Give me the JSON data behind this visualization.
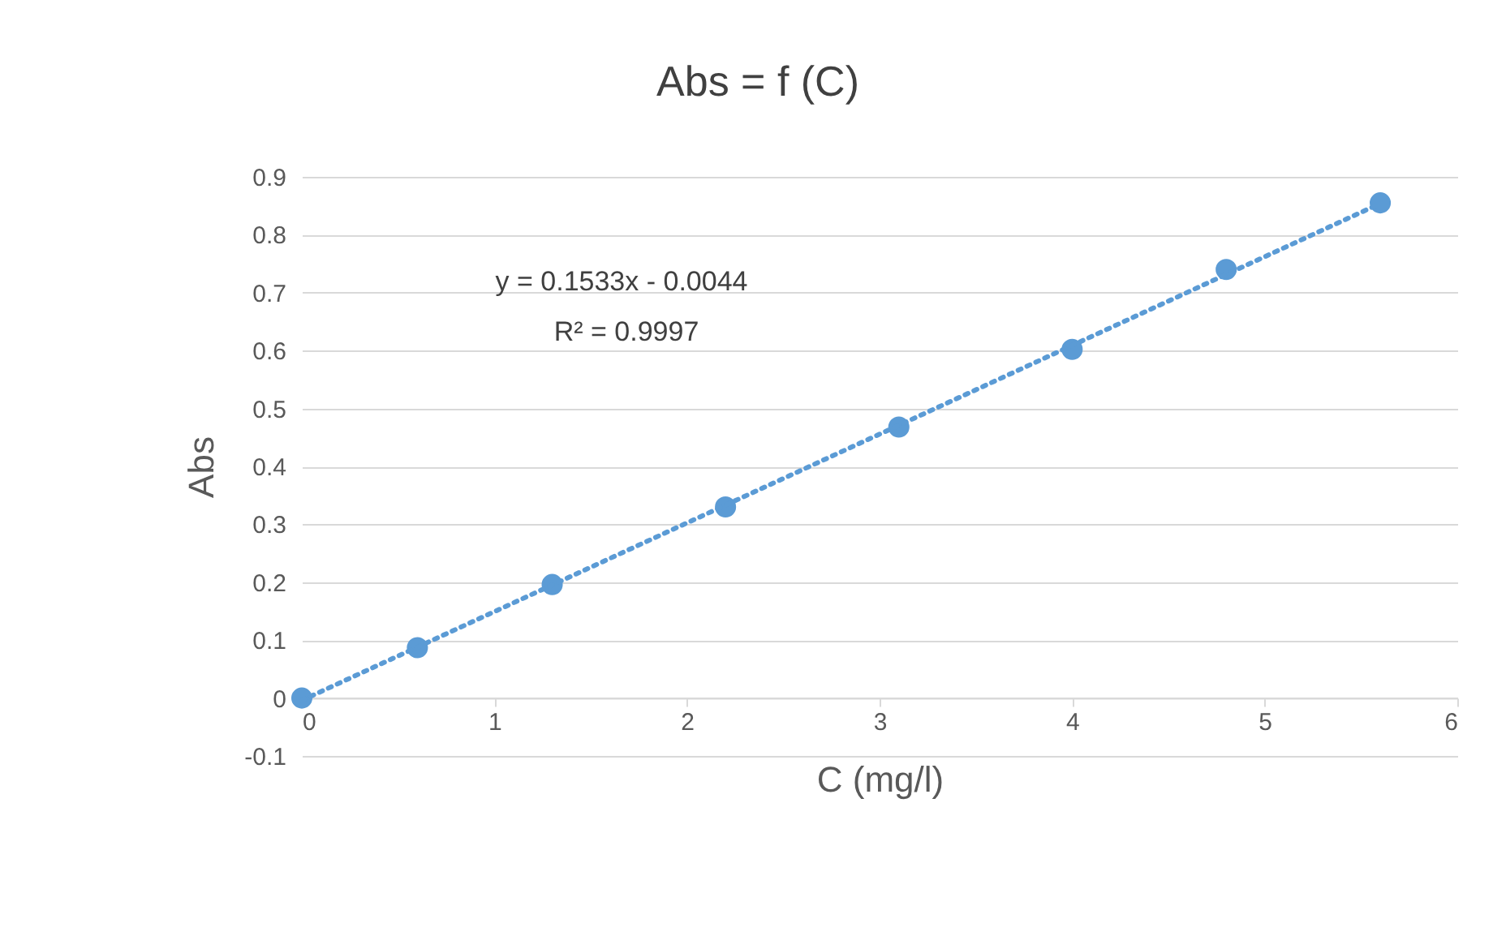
{
  "chart_data": {
    "type": "scatter",
    "title": "Abs = f (C)",
    "xlabel": "C (mg/l)",
    "ylabel": "Abs",
    "x": [
      0,
      0.6,
      1.3,
      2.2,
      3.1,
      4.0,
      4.8,
      5.6
    ],
    "series": [
      {
        "color": "#5b9bd5",
        "marker": "circle",
        "values": [
          0,
          0.087,
          0.196,
          0.33,
          0.468,
          0.602,
          0.74,
          0.855
        ]
      },
      {
        "type": "line",
        "color": "#5b9bd5",
        "line_style": "dotted",
        "x": [
          0,
          5.6
        ],
        "values": [
          -0.004,
          0.854
        ]
      }
    ],
    "annotations": [
      "y = 0.1533x - 0.0044",
      "R² = 0.9997"
    ],
    "xlim": [
      0,
      6
    ],
    "xticks": [
      0,
      1,
      2,
      3,
      4,
      5,
      6
    ],
    "ylim": [
      -0.1,
      0.9
    ],
    "yticks": [
      -0.1,
      0,
      0.1,
      0.2,
      0.3,
      0.4,
      0.5,
      0.6,
      0.7,
      0.8,
      0.9
    ],
    "grid": "y"
  }
}
